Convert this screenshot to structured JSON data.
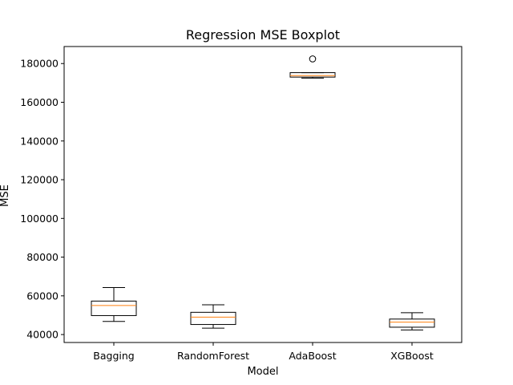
{
  "chart_data": {
    "type": "box",
    "title": "Regression MSE Boxplot",
    "xlabel": "Model",
    "ylabel": "MSE",
    "categories": [
      "Bagging",
      "RandomForest",
      "AdaBoost",
      "XGBoost"
    ],
    "ylim": [
      35900,
      188800
    ],
    "yticks": [
      40000,
      60000,
      80000,
      100000,
      120000,
      140000,
      160000,
      180000
    ],
    "boxes": [
      {
        "name": "Bagging",
        "whisker_low": 46800,
        "q1": 49800,
        "median": 55000,
        "q3": 57300,
        "whisker_high": 64300,
        "outliers": []
      },
      {
        "name": "RandomForest",
        "whisker_low": 43300,
        "q1": 45200,
        "median": 49000,
        "q3": 51500,
        "whisker_high": 55400,
        "outliers": []
      },
      {
        "name": "AdaBoost",
        "whisker_low": 172500,
        "q1": 173000,
        "median": 173800,
        "q3": 175300,
        "whisker_high": 175300,
        "outliers": [
          182400
        ]
      },
      {
        "name": "XGBoost",
        "whisker_low": 42400,
        "q1": 43800,
        "median": 46400,
        "q3": 48000,
        "whisker_high": 51300,
        "outliers": []
      }
    ],
    "colors": {
      "box": "#000000",
      "median": "#ff7f0e"
    },
    "grid": false,
    "legend": "none"
  }
}
